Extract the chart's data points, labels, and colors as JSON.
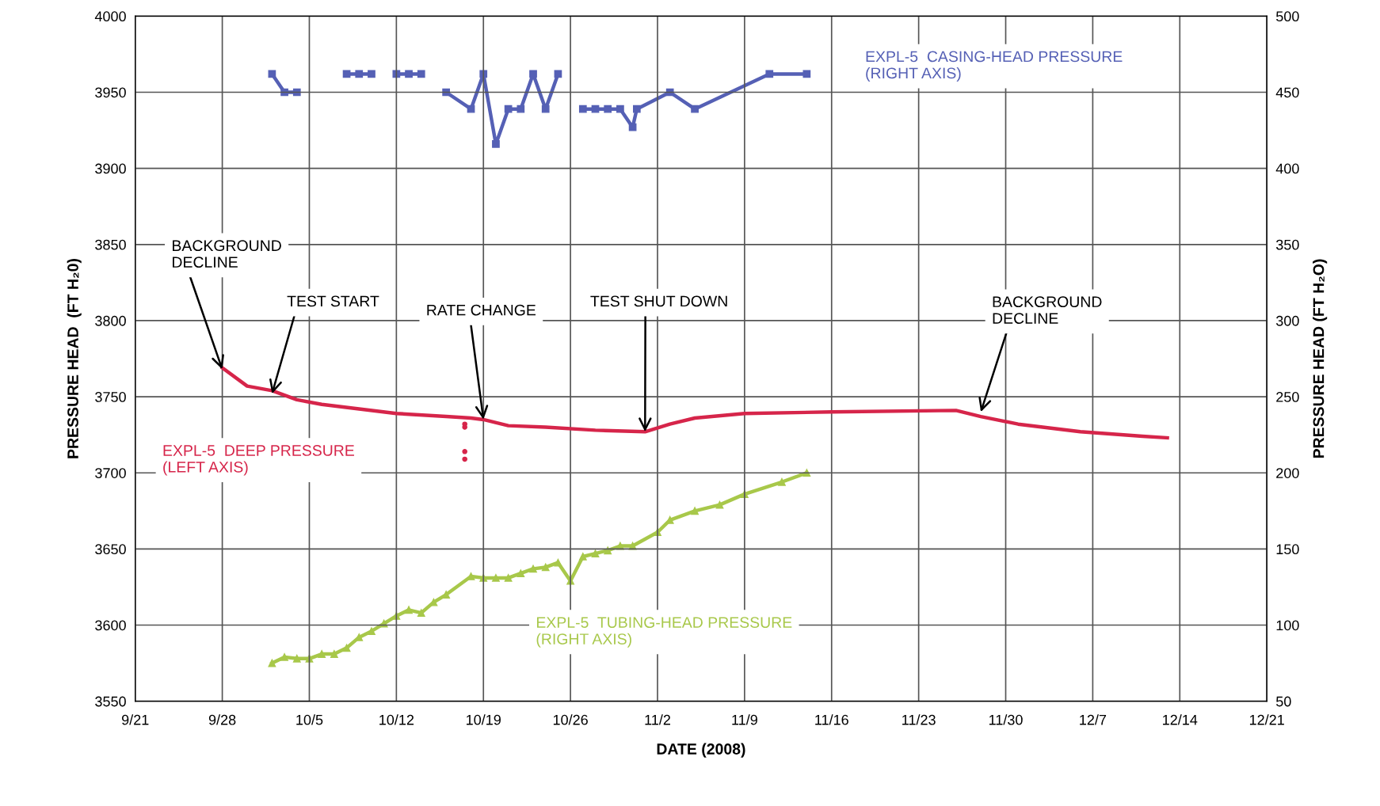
{
  "chart_data": {
    "type": "line",
    "xlabel": "DATE (2008)",
    "ylabel": "PRESSURE HEAD  (FT H₂0)",
    "y2label": "PRESSURE HEAD (FT H₂O)",
    "xlim": [
      "2008-09-21",
      "2008-12-21"
    ],
    "xticks": [
      {
        "value": "2008-09-21",
        "label": "9/21"
      },
      {
        "value": "2008-09-28",
        "label": "9/28"
      },
      {
        "value": "2008-10-05",
        "label": "10/5"
      },
      {
        "value": "2008-10-12",
        "label": "10/12"
      },
      {
        "value": "2008-10-19",
        "label": "10/19"
      },
      {
        "value": "2008-10-26",
        "label": "10/26"
      },
      {
        "value": "2008-11-02",
        "label": "11/2"
      },
      {
        "value": "2008-11-09",
        "label": "11/9"
      },
      {
        "value": "2008-11-16",
        "label": "11/16"
      },
      {
        "value": "2008-11-23",
        "label": "11/23"
      },
      {
        "value": "2008-11-30",
        "label": "11/30"
      },
      {
        "value": "2008-12-07",
        "label": "12/7"
      },
      {
        "value": "2008-12-14",
        "label": "12/14"
      },
      {
        "value": "2008-12-21",
        "label": "12/21"
      }
    ],
    "ylim": [
      3550,
      4000
    ],
    "yticks": [
      3550,
      3600,
      3650,
      3700,
      3750,
      3800,
      3850,
      3900,
      3950,
      4000
    ],
    "y2lim": [
      50,
      500
    ],
    "y2ticks": [
      50,
      100,
      150,
      200,
      250,
      300,
      350,
      400,
      450,
      500
    ],
    "grid": true,
    "series": [
      {
        "name": "EXPL-5  CASING-HEAD PRESSURE\n(RIGHT AXIS)",
        "color": "#5560b5",
        "axis": "y2",
        "marker": "square",
        "line_style": "solid",
        "x": [
          "2008-10-02",
          "2008-10-03",
          "2008-10-04",
          "2008-10-06",
          "2008-10-08",
          "2008-10-09",
          "2008-10-10",
          "2008-10-11",
          "2008-10-12",
          "2008-10-13",
          "2008-10-14",
          "2008-10-15",
          "2008-10-16",
          "2008-10-18",
          "2008-10-19",
          "2008-10-20",
          "2008-10-21",
          "2008-10-22",
          "2008-10-23",
          "2008-10-24",
          "2008-10-25",
          "2008-10-26",
          "2008-10-27",
          "2008-10-28",
          "2008-10-29",
          "2008-10-30",
          "2008-10-31",
          "2008-10-31T08:00",
          "2008-11-03",
          "2008-11-05",
          "2008-11-11",
          "2008-11-14"
        ],
        "values": [
          462,
          450,
          450,
          null,
          462,
          462,
          462,
          null,
          462,
          462,
          462,
          null,
          450,
          439,
          462,
          416,
          439,
          439,
          462,
          439,
          462,
          null,
          439,
          439,
          439,
          439,
          427,
          439,
          450,
          439,
          462,
          462
        ]
      },
      {
        "name": "EXPL-5  DEEP PRESSURE\n(LEFT AXIS)",
        "color": "#d6254a",
        "marker": "none",
        "line_style": "solid",
        "x": [
          "2008-09-28",
          "2008-09-30",
          "2008-10-02",
          "2008-10-03",
          "2008-10-04",
          "2008-10-06",
          "2008-10-09",
          "2008-10-12",
          "2008-10-16",
          "2008-10-18",
          "2008-10-19",
          "2008-10-21",
          "2008-10-24",
          "2008-10-28",
          "2008-11-01",
          "2008-11-03",
          "2008-11-05",
          "2008-11-09",
          "2008-11-16",
          "2008-11-26",
          "2008-11-28",
          "2008-12-01",
          "2008-12-06",
          "2008-12-11",
          "2008-12-13"
        ],
        "values": [
          3769,
          3757,
          3754,
          3751,
          3748,
          3745,
          3742,
          3739,
          3737,
          3736,
          3735,
          3731,
          3730,
          3728,
          3727,
          3732,
          3736,
          3739,
          3740,
          3741,
          3737,
          3732,
          3727,
          3724,
          3723
        ]
      },
      {
        "type": "scatter",
        "color": "#d6254a",
        "marker": "circle",
        "x": [
          "2008-10-17T12:00",
          "2008-10-17T12:00",
          "2008-10-17T12:00",
          "2008-10-17T12:00"
        ],
        "values": [
          3732,
          3730,
          3714,
          3709
        ]
      },
      {
        "name": "EXPL-5  TUBING-HEAD PRESSURE\n(RIGHT AXIS)",
        "color": "#a8c84a",
        "axis": "y2",
        "marker": "triangle",
        "line_style": "solid",
        "x": [
          "2008-10-02",
          "2008-10-03",
          "2008-10-04",
          "2008-10-05",
          "2008-10-06",
          "2008-10-07",
          "2008-10-08",
          "2008-10-09",
          "2008-10-10",
          "2008-10-11",
          "2008-10-12",
          "2008-10-13",
          "2008-10-14",
          "2008-10-15",
          "2008-10-16",
          "2008-10-18",
          "2008-10-19",
          "2008-10-20",
          "2008-10-21",
          "2008-10-22",
          "2008-10-23",
          "2008-10-24",
          "2008-10-25",
          "2008-10-26",
          "2008-10-27",
          "2008-10-28",
          "2008-10-29",
          "2008-10-30",
          "2008-10-31",
          "2008-11-02",
          "2008-11-03",
          "2008-11-05",
          "2008-11-07",
          "2008-11-09",
          "2008-11-12",
          "2008-11-14"
        ],
        "values": [
          75,
          79,
          78,
          78,
          81,
          81,
          85,
          92,
          96,
          101,
          106,
          110,
          108,
          115,
          120,
          132,
          131,
          131,
          131,
          134,
          137,
          138,
          141,
          129,
          145,
          147,
          149,
          152,
          152,
          161,
          169,
          175,
          179,
          186,
          194,
          200
        ]
      }
    ],
    "annotations": [
      {
        "text": "BACKGROUND\nDECLINE",
        "x": "2008-09-28",
        "y": 3768
      },
      {
        "text": "TEST START",
        "x": "2008-10-02",
        "y": 3752
      },
      {
        "text": "RATE CHANGE",
        "x": "2008-10-19",
        "y": 3735
      },
      {
        "text": "TEST SHUT DOWN",
        "x": "2008-11-01",
        "y": 3727
      },
      {
        "text": "BACKGROUND\nDECLINE",
        "x": "2008-11-28",
        "y": 3740
      }
    ]
  }
}
